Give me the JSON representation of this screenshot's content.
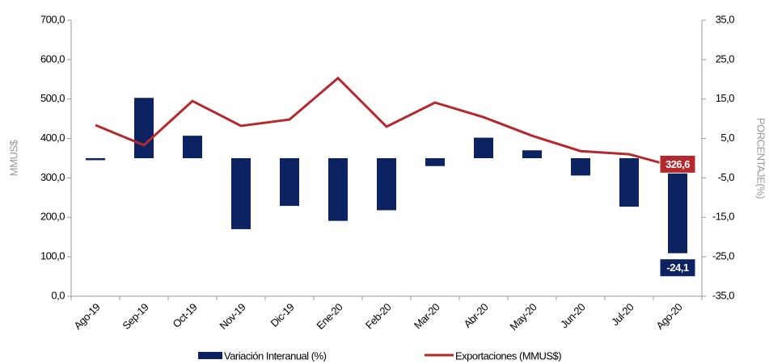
{
  "chart_data": {
    "type": "bar-line",
    "categories": [
      "Ago-19",
      "Sep-19",
      "Oct-19",
      "Nov-19",
      "Dic-19",
      "Ene-20",
      "Feb-20",
      "Mar-20",
      "Abr-20",
      "May-20",
      "Jun-20",
      "Jul-20",
      "Ago-20"
    ],
    "series": [
      {
        "name": "Variación Interanual (%)",
        "type": "bar",
        "axis": "y2",
        "color": "#0d2260",
        "values": [
          -0.5,
          15.3,
          5.7,
          -18.0,
          -12.1,
          -15.9,
          -13.2,
          -2.0,
          5.2,
          2.0,
          -4.4,
          -12.3,
          -24.1
        ],
        "value_labels": [
          null,
          null,
          null,
          null,
          null,
          null,
          null,
          null,
          null,
          null,
          null,
          null,
          "-24,1"
        ]
      },
      {
        "name": "Exportaciones (MMUS$)",
        "type": "line",
        "axis": "y",
        "color": "#b22a2e",
        "values": [
          434,
          383,
          495,
          432,
          448,
          553,
          430,
          491,
          454,
          407,
          368,
          360,
          326.6
        ],
        "value_labels": [
          null,
          null,
          null,
          null,
          null,
          null,
          null,
          null,
          null,
          null,
          null,
          null,
          "326,6"
        ]
      }
    ],
    "ylabel": "MMUS$",
    "y2label": "PORCENTAJE(%)",
    "ylim": [
      0,
      700
    ],
    "yticks": [
      {
        "value": 0,
        "label": "0,0"
      },
      {
        "value": 100,
        "label": "100,0"
      },
      {
        "value": 200,
        "label": "200,0"
      },
      {
        "value": 300,
        "label": "300,0"
      },
      {
        "value": 400,
        "label": "400,0"
      },
      {
        "value": 500,
        "label": "500,0"
      },
      {
        "value": 600,
        "label": "600,0"
      },
      {
        "value": 700,
        "label": "700,0"
      }
    ],
    "y2lim": [
      -35,
      35
    ],
    "y2ticks": [
      {
        "value": -35,
        "label": "-35,0"
      },
      {
        "value": -25,
        "label": "-25,0"
      },
      {
        "value": -15,
        "label": "-15,0"
      },
      {
        "value": -5,
        "label": "-5,0"
      },
      {
        "value": 5,
        "label": "5,0"
      },
      {
        "value": 15,
        "label": "15,0"
      },
      {
        "value": 25,
        "label": "25,0"
      },
      {
        "value": 35,
        "label": "35,0"
      }
    ],
    "legend": "bottom"
  }
}
